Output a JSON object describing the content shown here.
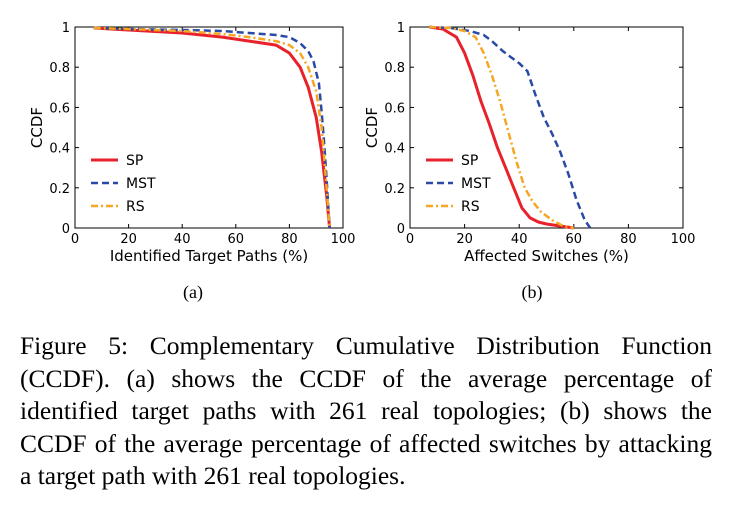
{
  "chart_data": [
    {
      "type": "line",
      "panel_label": "(a)",
      "xlabel": "Identified Target Paths (%)",
      "ylabel": "CCDF",
      "xlim": [
        0,
        100
      ],
      "ylim": [
        0,
        1
      ],
      "xticks": [
        0,
        20,
        40,
        60,
        80,
        100
      ],
      "yticks": [
        0,
        0.2,
        0.4,
        0.6,
        0.8,
        1
      ],
      "ytick_labels": [
        "0",
        "0.2",
        "0.4",
        "0.6",
        "0.8",
        "1"
      ],
      "legend_position": "bottom-left",
      "series": [
        {
          "name": "SP",
          "color": "#e8212b",
          "style": "solid",
          "x": [
            7,
            20,
            40,
            55,
            65,
            75,
            80,
            84,
            87,
            90,
            92,
            94,
            95
          ],
          "y": [
            0.995,
            0.985,
            0.97,
            0.95,
            0.93,
            0.91,
            0.87,
            0.8,
            0.7,
            0.55,
            0.38,
            0.15,
            0.0
          ]
        },
        {
          "name": "MST",
          "color": "#2b4aa6",
          "style": "dashed",
          "x": [
            7,
            20,
            40,
            55,
            65,
            75,
            80,
            84,
            87,
            89,
            91,
            92,
            93,
            94,
            95
          ],
          "y": [
            0.995,
            0.99,
            0.985,
            0.98,
            0.97,
            0.96,
            0.95,
            0.92,
            0.88,
            0.83,
            0.72,
            0.58,
            0.42,
            0.22,
            0.0
          ]
        },
        {
          "name": "RS",
          "color": "#f5a623",
          "style": "dashdot",
          "x": [
            7,
            20,
            40,
            55,
            65,
            75,
            80,
            84,
            87,
            90,
            92,
            93,
            94,
            95
          ],
          "y": [
            0.995,
            0.99,
            0.98,
            0.965,
            0.95,
            0.93,
            0.91,
            0.87,
            0.8,
            0.68,
            0.5,
            0.35,
            0.18,
            0.0
          ]
        }
      ]
    },
    {
      "type": "line",
      "panel_label": "(b)",
      "xlabel": "Affected Switches (%)",
      "ylabel": "CCDF",
      "xlim": [
        0,
        100
      ],
      "ylim": [
        0,
        1
      ],
      "xticks": [
        0,
        20,
        40,
        60,
        80,
        100
      ],
      "yticks": [
        0,
        0.2,
        0.4,
        0.6,
        0.8,
        1
      ],
      "ytick_labels": [
        "0",
        "0.2",
        "0.4",
        "0.6",
        "0.8",
        "1"
      ],
      "legend_position": "bottom-left",
      "series": [
        {
          "name": "SP",
          "color": "#e8212b",
          "style": "solid",
          "x": [
            7,
            12,
            17,
            20,
            23,
            26,
            29,
            32,
            35,
            38,
            41,
            44,
            47,
            50,
            55,
            60
          ],
          "y": [
            1.0,
            0.99,
            0.95,
            0.87,
            0.76,
            0.63,
            0.52,
            0.4,
            0.3,
            0.2,
            0.1,
            0.05,
            0.03,
            0.02,
            0.01,
            0.0
          ]
        },
        {
          "name": "MST",
          "color": "#2b4aa6",
          "style": "dashed",
          "x": [
            7,
            15,
            22,
            27,
            30,
            34,
            37,
            40,
            43,
            46,
            49,
            52,
            55,
            58,
            61,
            64,
            66
          ],
          "y": [
            1.0,
            0.995,
            0.98,
            0.96,
            0.93,
            0.88,
            0.85,
            0.82,
            0.78,
            0.66,
            0.55,
            0.47,
            0.38,
            0.27,
            0.14,
            0.04,
            0.0
          ]
        },
        {
          "name": "RS",
          "color": "#f5a623",
          "style": "dashdot",
          "x": [
            7,
            15,
            20,
            24,
            27,
            30,
            33,
            36,
            39,
            42,
            45,
            48,
            52,
            56,
            60
          ],
          "y": [
            1.0,
            0.995,
            0.98,
            0.95,
            0.87,
            0.76,
            0.63,
            0.48,
            0.33,
            0.2,
            0.13,
            0.08,
            0.04,
            0.01,
            0.0
          ]
        }
      ]
    }
  ],
  "caption": "Figure 5: Complementary Cumulative Distribution Function (CCDF). (a) shows the CCDF of the average percentage of identified target paths with 261 real topologies; (b) shows the CCDF of the average percentage of affected switches by attacking a target path with 261 real topologies."
}
